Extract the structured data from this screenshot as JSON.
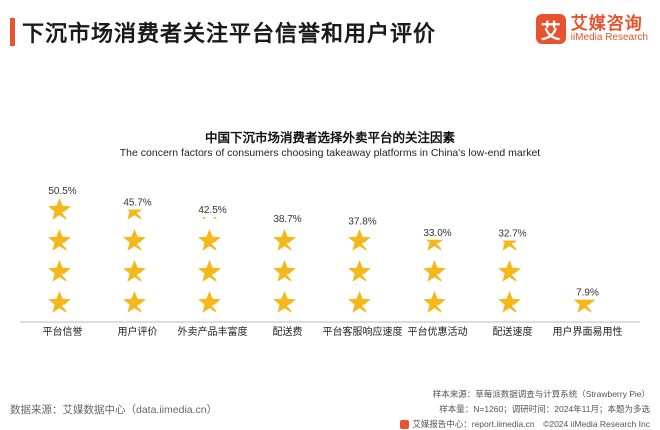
{
  "header": {
    "title": "下沉市场消费者关注平台信誉和用户评价",
    "logo_mark": "艾",
    "logo_cn": "艾媒咨询",
    "logo_en": "iiMedia Research"
  },
  "chart_data": {
    "type": "bar",
    "subtype": "pictograph-stars",
    "title": "中国下沉市场消费者选择外卖平台的关注因素",
    "subtitle": "The concern factors of consumers choosing takeaway platforms in China's low-end market",
    "categories": [
      "平台信誉",
      "用户评价",
      "外卖产品丰富度",
      "配送费",
      "平台客服响应速度",
      "平台优惠活动",
      "配送速度",
      "用户界面易用性"
    ],
    "values": [
      50.5,
      45.7,
      42.5,
      38.7,
      37.8,
      33.0,
      32.7,
      7.9
    ],
    "value_labels": [
      "50.5%",
      "45.7%",
      "42.5%",
      "38.7%",
      "37.8%",
      "33.0%",
      "32.7%",
      "7.9%"
    ],
    "icons_per_column": 4,
    "ylim": [
      0,
      52
    ],
    "star_color": "#f5b81c",
    "check_color": "#ffffff"
  },
  "footer": {
    "source_left": "数据来源：艾媒数据中心（data.iimedia.cn）",
    "sample_source": "样本来源：草莓派数据调查与计算系统（Strawberry Pie）",
    "sample_info": "样本量：N=1260；调研时间：2024年11月；本题为多选",
    "report": "艾媒报告中心：report.iimedia.cn　©2024  iiMedia Research  Inc"
  }
}
